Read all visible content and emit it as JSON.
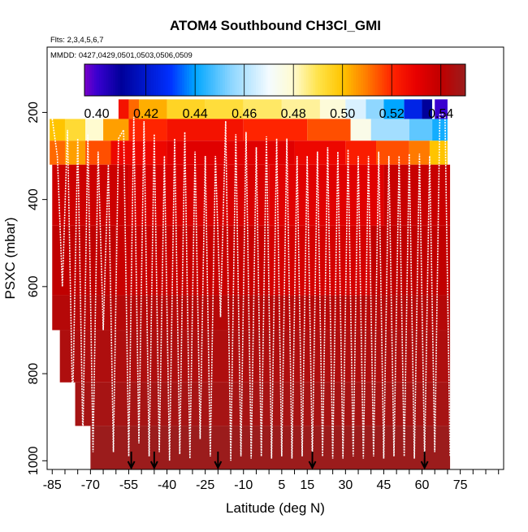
{
  "chart_data": {
    "type": "heatmap",
    "title": "ATOM4 Southbound CH3Cl_GMI",
    "flights_note": "Flts: 2,3,4,5,6,7",
    "dates_note": "MMDD: 0427,0429,0501,0503,0506,0509",
    "xlabel": "Latitude (deg N)",
    "ylabel": "PSXC (mbar)",
    "xlim": [
      -87,
      92
    ],
    "ylim": [
      1020,
      50
    ],
    "y_reversed": true,
    "grid": false,
    "x_ticks": [
      -85,
      -80,
      -75,
      -70,
      -65,
      -60,
      -55,
      -50,
      -45,
      -40,
      -35,
      -30,
      -25,
      -20,
      -15,
      -10,
      -5,
      0,
      5,
      10,
      15,
      20,
      25,
      30,
      35,
      40,
      45,
      50,
      55,
      60,
      65,
      70,
      75,
      80,
      85,
      90
    ],
    "x_tick_labels": [
      {
        "value": -85,
        "label": "-85"
      },
      {
        "value": -70,
        "label": "-70"
      },
      {
        "value": -55,
        "label": "-55"
      },
      {
        "value": -40,
        "label": "-40"
      },
      {
        "value": -25,
        "label": "-25"
      },
      {
        "value": -10,
        "label": "-10"
      },
      {
        "value": 5,
        "label": "5"
      },
      {
        "value": 15,
        "label": "15"
      },
      {
        "value": 30,
        "label": "30"
      },
      {
        "value": 45,
        "label": "45"
      },
      {
        "value": 60,
        "label": "60"
      },
      {
        "value": 75,
        "label": "75"
      }
    ],
    "y_tick_labels": [
      {
        "value": 200,
        "label": "200"
      },
      {
        "value": 400,
        "label": "400"
      },
      {
        "value": 600,
        "label": "600"
      },
      {
        "value": 800,
        "label": "800"
      },
      {
        "value": 1000,
        "label": "1000"
      }
    ],
    "colorbar": {
      "range": [
        0.395,
        0.55
      ],
      "ticks": [
        0.4,
        0.42,
        0.44,
        0.46,
        0.48,
        0.5,
        0.52,
        0.54
      ],
      "tick_labels": [
        "0.40",
        "0.42",
        "0.44",
        "0.46",
        "0.48",
        "0.50",
        "0.52",
        "0.54"
      ],
      "dividers": [
        0.42,
        0.44,
        0.46,
        0.48,
        0.5,
        0.52,
        0.54
      ],
      "stops": [
        {
          "value": 0.395,
          "color": "#7a00c8"
        },
        {
          "value": 0.4,
          "color": "#3a00d0"
        },
        {
          "value": 0.41,
          "color": "#00009a"
        },
        {
          "value": 0.43,
          "color": "#0030ff"
        },
        {
          "value": 0.44,
          "color": "#00a6ff"
        },
        {
          "value": 0.455,
          "color": "#8fd7ff"
        },
        {
          "value": 0.47,
          "color": "#f4fbff"
        },
        {
          "value": 0.48,
          "color": "#fffbd0"
        },
        {
          "value": 0.49,
          "color": "#ffe34a"
        },
        {
          "value": 0.5,
          "color": "#ffc400"
        },
        {
          "value": 0.51,
          "color": "#ff7a00"
        },
        {
          "value": 0.52,
          "color": "#ff2400"
        },
        {
          "value": 0.53,
          "color": "#e80000"
        },
        {
          "value": 0.54,
          "color": "#c00000"
        },
        {
          "value": 0.55,
          "color": "#9b1c1c"
        }
      ]
    },
    "bands": [
      {
        "p_top": 170,
        "p_bottom": 215,
        "segments": [
          {
            "x0": -59,
            "x1": -55,
            "v": 0.525
          },
          {
            "x0": -55,
            "x1": -51,
            "v": 0.512
          },
          {
            "x0": -51,
            "x1": -40,
            "v": 0.503
          },
          {
            "x0": -40,
            "x1": -25,
            "v": 0.495
          },
          {
            "x0": -25,
            "x1": -10,
            "v": 0.492
          },
          {
            "x0": -10,
            "x1": 5,
            "v": 0.488
          },
          {
            "x0": 5,
            "x1": 20,
            "v": 0.484
          },
          {
            "x0": 20,
            "x1": 30,
            "v": 0.478
          },
          {
            "x0": 30,
            "x1": 38,
            "v": 0.466
          },
          {
            "x0": 38,
            "x1": 45,
            "v": 0.455
          },
          {
            "x0": 45,
            "x1": 53,
            "v": 0.44
          },
          {
            "x0": 53,
            "x1": 60,
            "v": 0.425
          },
          {
            "x0": 60,
            "x1": 64,
            "v": 0.41
          },
          {
            "x0": 64,
            "x1": 65,
            "v": 0.47
          },
          {
            "x0": 65,
            "x1": 70,
            "v": 0.4
          }
        ]
      },
      {
        "p_top": 215,
        "p_bottom": 265,
        "segments": [
          {
            "x0": -86,
            "x1": -80,
            "v": 0.5
          },
          {
            "x0": -80,
            "x1": -72,
            "v": 0.493
          },
          {
            "x0": -72,
            "x1": -65,
            "v": 0.48
          },
          {
            "x0": -65,
            "x1": -55,
            "v": 0.505
          },
          {
            "x0": -55,
            "x1": -40,
            "v": 0.52
          },
          {
            "x0": -40,
            "x1": -10,
            "v": 0.525
          },
          {
            "x0": -10,
            "x1": 15,
            "v": 0.52
          },
          {
            "x0": 15,
            "x1": 32,
            "v": 0.515
          },
          {
            "x0": 32,
            "x1": 40,
            "v": 0.475
          },
          {
            "x0": 40,
            "x1": 55,
            "v": 0.458
          },
          {
            "x0": 55,
            "x1": 64,
            "v": 0.45
          },
          {
            "x0": 64,
            "x1": 70,
            "v": 0.442
          }
        ]
      },
      {
        "p_top": 265,
        "p_bottom": 320,
        "segments": [
          {
            "x0": -86,
            "x1": -80,
            "v": 0.512
          },
          {
            "x0": -80,
            "x1": -72,
            "v": 0.505
          },
          {
            "x0": -72,
            "x1": -62,
            "v": 0.515
          },
          {
            "x0": -62,
            "x1": -40,
            "v": 0.528
          },
          {
            "x0": -40,
            "x1": 10,
            "v": 0.532
          },
          {
            "x0": 10,
            "x1": 30,
            "v": 0.528
          },
          {
            "x0": 30,
            "x1": 42,
            "v": 0.522
          },
          {
            "x0": 42,
            "x1": 55,
            "v": 0.515
          },
          {
            "x0": 55,
            "x1": 63,
            "v": 0.51
          },
          {
            "x0": 63,
            "x1": 70,
            "v": 0.5
          }
        ]
      },
      {
        "p_top": 320,
        "p_bottom": 460,
        "segments": [
          {
            "x0": -85,
            "x1": -55,
            "v": 0.537
          },
          {
            "x0": -55,
            "x1": 0,
            "v": 0.534
          },
          {
            "x0": 0,
            "x1": 45,
            "v": 0.532
          },
          {
            "x0": 45,
            "x1": 71,
            "v": 0.538
          }
        ]
      },
      {
        "p_top": 460,
        "p_bottom": 620,
        "segments": [
          {
            "x0": -85,
            "x1": -60,
            "v": 0.54
          },
          {
            "x0": -60,
            "x1": 0,
            "v": 0.538
          },
          {
            "x0": 0,
            "x1": 40,
            "v": 0.535
          },
          {
            "x0": 40,
            "x1": 71,
            "v": 0.54
          }
        ]
      },
      {
        "p_top": 620,
        "p_bottom": 700,
        "segments": [
          {
            "x0": -85,
            "x1": 71,
            "v": 0.543
          }
        ]
      },
      {
        "p_top": 700,
        "p_bottom": 820,
        "segments": [
          {
            "x0": -82,
            "x1": 71,
            "v": 0.545
          }
        ]
      },
      {
        "p_top": 820,
        "p_bottom": 920,
        "segments": [
          {
            "x0": -76,
            "x1": 71,
            "v": 0.547
          }
        ]
      },
      {
        "p_top": 920,
        "p_bottom": 1020,
        "segments": [
          {
            "x0": -70,
            "x1": 71,
            "v": 0.55
          }
        ]
      }
    ],
    "profile_lon_x": [
      -85,
      -83,
      -81,
      -79,
      -77,
      -75,
      -73,
      -71,
      -69,
      -67,
      -65,
      -63,
      -61,
      -59,
      -57,
      -55,
      -53,
      -51,
      -49,
      -47,
      -45,
      -43,
      -41,
      -39,
      -37,
      -35,
      -33,
      -31,
      -29,
      -27,
      -25,
      -23,
      -21,
      -19,
      -17,
      -15,
      -13,
      -11,
      -9,
      -7,
      -5,
      -3,
      -1,
      1,
      3,
      5,
      7,
      9,
      11,
      13,
      15,
      17,
      19,
      21,
      23,
      25,
      27,
      29,
      31,
      33,
      35,
      37,
      39,
      41,
      43,
      45,
      47,
      49,
      51,
      53,
      55,
      57,
      59,
      61,
      63,
      65,
      67,
      69,
      71
    ],
    "profile_p": [
      215,
      300,
      600,
      240,
      880,
      260,
      950,
      250,
      980,
      290,
      700,
      320,
      980,
      260,
      240,
      990,
      210,
      960,
      220,
      990,
      250,
      980,
      300,
      1000,
      260,
      985,
      245,
      995,
      290,
      950,
      300,
      990,
      300,
      670,
      220,
      1000,
      250,
      990,
      245,
      995,
      280,
      990,
      255,
      995,
      260,
      990,
      260,
      995,
      300,
      990,
      300,
      995,
      290,
      990,
      280,
      995,
      290,
      995,
      285,
      990,
      300,
      995,
      300,
      990,
      290,
      995,
      300,
      990,
      300,
      990,
      295,
      995,
      295,
      995,
      300,
      980,
      205,
      205,
      990
    ],
    "arrows": [
      -54,
      -45,
      -20,
      17,
      61
    ]
  }
}
